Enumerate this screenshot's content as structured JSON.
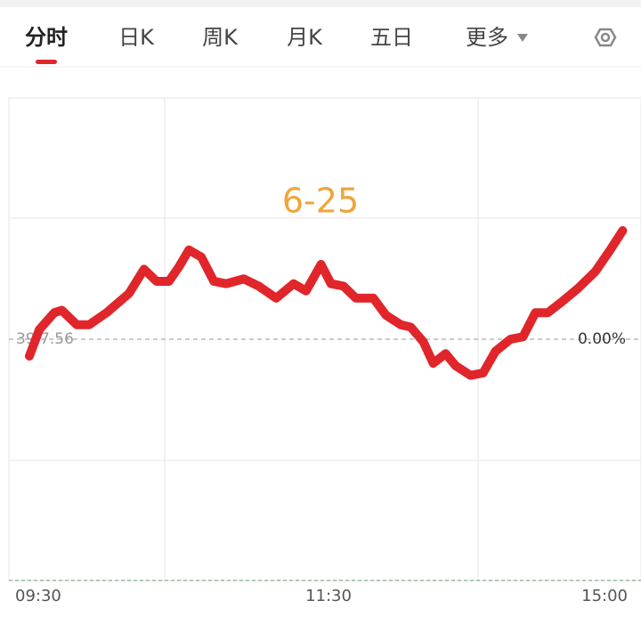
{
  "tabs": [
    "分时",
    "日K",
    "周K",
    "月K",
    "五日",
    "更多"
  ],
  "chart_data": {
    "type": "line",
    "annotation": "6-25",
    "ref_label": "39 7.56",
    "x": [
      0,
      4,
      10,
      13,
      19,
      24,
      31,
      40,
      46,
      51,
      56,
      60,
      64,
      69,
      74,
      79,
      86,
      92,
      99,
      106,
      111,
      117,
      121,
      126,
      131,
      138,
      143,
      149,
      153,
      158,
      162,
      167,
      171,
      177,
      182,
      187,
      193,
      198,
      203,
      208,
      213,
      220,
      227,
      233,
      238
    ],
    "series": [
      {
        "name": "分时",
        "color": "#e0262b",
        "values": [
          -0.07,
          0.04,
          0.11,
          0.12,
          0.06,
          0.06,
          0.11,
          0.19,
          0.29,
          0.24,
          0.24,
          0.3,
          0.37,
          0.34,
          0.24,
          0.23,
          0.25,
          0.22,
          0.17,
          0.23,
          0.2,
          0.31,
          0.23,
          0.22,
          0.17,
          0.17,
          0.1,
          0.06,
          0.05,
          -0.01,
          -0.1,
          -0.06,
          -0.11,
          -0.15,
          -0.14,
          -0.05,
          0.0,
          0.01,
          0.11,
          0.11,
          0.15,
          0.21,
          0.28,
          0.37,
          0.45
        ]
      }
    ],
    "xlim": [
      0,
      240
    ],
    "xticks": [
      {
        "value": 0,
        "label": "09:30"
      },
      {
        "value": 120,
        "label": "11:30"
      },
      {
        "value": 240,
        "label": "15:00"
      }
    ],
    "ylim": [
      -1,
      1
    ],
    "yticks": [
      {
        "value": 0,
        "label": "0.00%"
      }
    ]
  }
}
